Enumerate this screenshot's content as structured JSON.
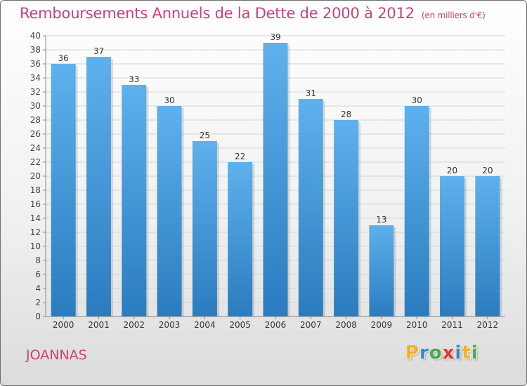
{
  "chart_data": {
    "type": "bar",
    "title": "Remboursements Annuels de la Dette de 2000 à 2012",
    "subtitle": "(en milliers d'€)",
    "categories": [
      "2000",
      "2001",
      "2002",
      "2003",
      "2004",
      "2005",
      "2006",
      "2007",
      "2008",
      "2009",
      "2010",
      "2011",
      "2012"
    ],
    "values": [
      36,
      37,
      33,
      30,
      25,
      22,
      39,
      31,
      28,
      13,
      30,
      20,
      20
    ],
    "ylim": [
      0,
      40
    ],
    "ytick_step": 2,
    "grid": true,
    "bar_color_top": "#5eb1ec",
    "bar_color_bottom": "#2a7cbf"
  },
  "commune": "JOANNAS",
  "logo": {
    "letters": [
      "P",
      "r",
      "o",
      "x",
      "i",
      "t",
      "i"
    ],
    "colors": [
      "#f2b21a",
      "#3a86c8",
      "#4aa84a",
      "#e23b2f",
      "#3a86c8",
      "#f2b21a",
      "#4aa84a"
    ]
  }
}
